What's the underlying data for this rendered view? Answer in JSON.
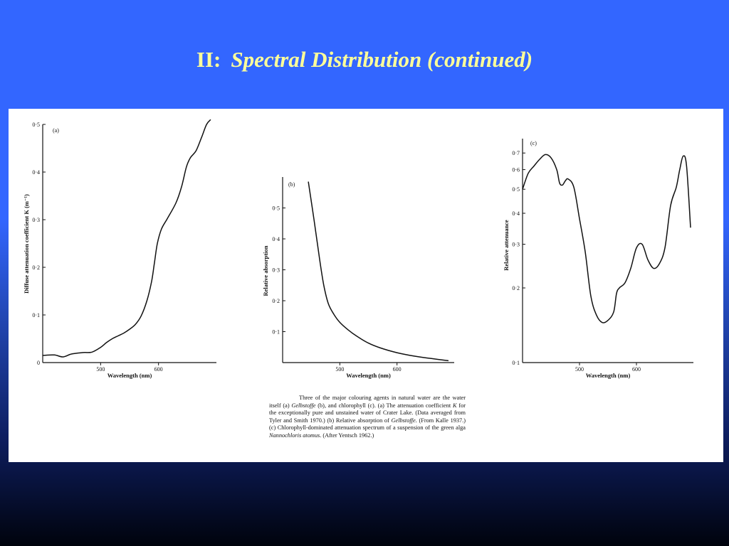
{
  "slide": {
    "title_prefix": "II:",
    "title": "Spectral Distribution (continued)"
  },
  "caption": {
    "line1": "Three of the major colouring agents in natural water are the water itself (a) ",
    "gelb1": "Gelbstoffe",
    "line2": " (b), and chlorophyll (c). (a) The attenuation coefficient ",
    "k": "K",
    "line3": " for the exceptionally pure and unstained water of Crater Lake. (Data averaged from Tyler and Smith 1970.) (b) Relative absorption of ",
    "gelb2": "Gelbstoffe",
    "line4": ". (From Kalle 1937.) (c) Chlorophyll-dominated attenuation spectrum of a suspension of the green alga ",
    "species": "Nannochloris atomus",
    "line5": ". (After Yentsch 1962.)"
  },
  "chart_data": [
    {
      "panel": "(a)",
      "type": "line",
      "xlabel": "Wavelength (nm)",
      "ylabel": "Diffuse attenuation coefficient  K (m⁻¹)",
      "xticks": [
        500,
        600
      ],
      "xtick_labels": [
        "500",
        "600"
      ],
      "yticks": [
        0,
        0.1,
        0.2,
        0.3,
        0.4,
        0.5
      ],
      "ytick_labels": [
        "0",
        "0·1",
        "0·2",
        "0·3",
        "0·4",
        "0·5"
      ],
      "xlim": [
        400,
        700
      ],
      "ylim": [
        0,
        0.5
      ],
      "grid": false,
      "x": [
        400,
        420,
        435,
        450,
        470,
        485,
        500,
        510,
        520,
        530,
        540,
        550,
        560,
        570,
        580,
        588,
        593,
        598,
        605,
        615,
        630,
        640,
        648,
        655,
        665,
        675,
        683,
        690
      ],
      "y": [
        0.015,
        0.016,
        0.012,
        0.018,
        0.021,
        0.022,
        0.032,
        0.042,
        0.05,
        0.056,
        0.062,
        0.07,
        0.08,
        0.098,
        0.13,
        0.17,
        0.21,
        0.25,
        0.28,
        0.302,
        0.335,
        0.37,
        0.41,
        0.43,
        0.445,
        0.475,
        0.5,
        0.51
      ]
    },
    {
      "panel": "(b)",
      "type": "line",
      "xlabel": "Wavelength (nm)",
      "ylabel": "Relative  absorption",
      "xticks": [
        500,
        600
      ],
      "xtick_labels": [
        "500",
        "600"
      ],
      "yticks": [
        0.1,
        0.2,
        0.3,
        0.4,
        0.5
      ],
      "ytick_labels": [
        "0·1",
        "0·2",
        "0·3",
        "0·4",
        "0·5"
      ],
      "xlim": [
        400,
        700
      ],
      "ylim": [
        0,
        0.6
      ],
      "grid": false,
      "x": [
        445,
        455,
        465,
        472,
        480,
        490,
        500,
        515,
        530,
        550,
        570,
        600,
        630,
        660,
        690
      ],
      "y": [
        0.585,
        0.46,
        0.33,
        0.25,
        0.19,
        0.155,
        0.13,
        0.105,
        0.085,
        0.063,
        0.048,
        0.032,
        0.021,
        0.013,
        0.006
      ]
    },
    {
      "panel": "(c)",
      "type": "line",
      "xlabel": "Wavelength (nm)",
      "ylabel": "Relative attenuance",
      "xticks": [
        500,
        600
      ],
      "xtick_labels": [
        "500",
        "600"
      ],
      "yticks": [
        0.1,
        0.2,
        0.3,
        0.4,
        0.5,
        0.6,
        0.7
      ],
      "ytick_labels": [
        "0·1",
        "0·2",
        "0·3",
        "0·4",
        "0·5",
        "0·6",
        "0·7"
      ],
      "yscale": "log",
      "xlim": [
        400,
        700
      ],
      "ylim": [
        0.1,
        0.8
      ],
      "grid": false,
      "x": [
        400,
        410,
        420,
        430,
        440,
        450,
        460,
        465,
        470,
        475,
        480,
        490,
        500,
        510,
        520,
        530,
        540,
        550,
        560,
        565,
        570,
        580,
        590,
        600,
        610,
        620,
        630,
        640,
        650,
        660,
        670,
        676,
        682,
        688,
        695
      ],
      "y": [
        0.5,
        0.58,
        0.62,
        0.66,
        0.69,
        0.67,
        0.6,
        0.53,
        0.52,
        0.54,
        0.55,
        0.51,
        0.38,
        0.28,
        0.185,
        0.155,
        0.145,
        0.148,
        0.16,
        0.19,
        0.2,
        0.21,
        0.24,
        0.29,
        0.3,
        0.26,
        0.24,
        0.25,
        0.29,
        0.43,
        0.51,
        0.6,
        0.68,
        0.62,
        0.35
      ]
    }
  ]
}
